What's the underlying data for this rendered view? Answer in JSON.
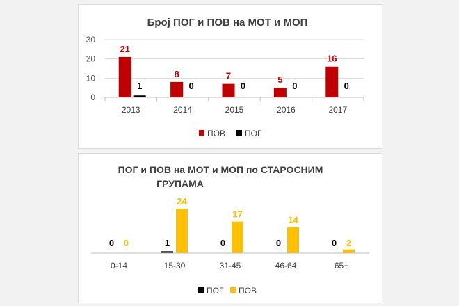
{
  "colors": {
    "pov": "#C00000",
    "pog": "#000000",
    "pov_age": "#FFC000",
    "grid": "#d9d9d9",
    "axis": "#bfbfbf"
  },
  "chart_data": [
    {
      "type": "bar",
      "title": "Број ПОГ и ПОВ на МОТ и МОП",
      "categories": [
        "2013",
        "2014",
        "2015",
        "2016",
        "2017"
      ],
      "series": [
        {
          "name": "ПОВ",
          "values": [
            21,
            8,
            7,
            5,
            16
          ]
        },
        {
          "name": "ПОГ",
          "values": [
            1,
            0,
            0,
            0,
            0
          ]
        }
      ],
      "ylim": [
        0,
        30
      ],
      "yticks": [
        "0",
        "10",
        "20",
        "30"
      ],
      "grid": true,
      "legend": "bottom"
    },
    {
      "type": "bar",
      "title_lines": [
        "ПОГ  и ПОВ на МОТ и МОП по СТАРОСНИМ",
        "ГРУПАМА"
      ],
      "categories": [
        "0-14",
        "15-30",
        "31-45",
        "46-64",
        "65+"
      ],
      "series": [
        {
          "name": "ПОГ",
          "values": [
            0,
            1,
            0,
            0,
            0
          ]
        },
        {
          "name": "ПОВ",
          "values": [
            0,
            24,
            17,
            14,
            2
          ]
        }
      ],
      "ylim": [
        0,
        30
      ],
      "grid": false,
      "legend": "bottom"
    }
  ]
}
